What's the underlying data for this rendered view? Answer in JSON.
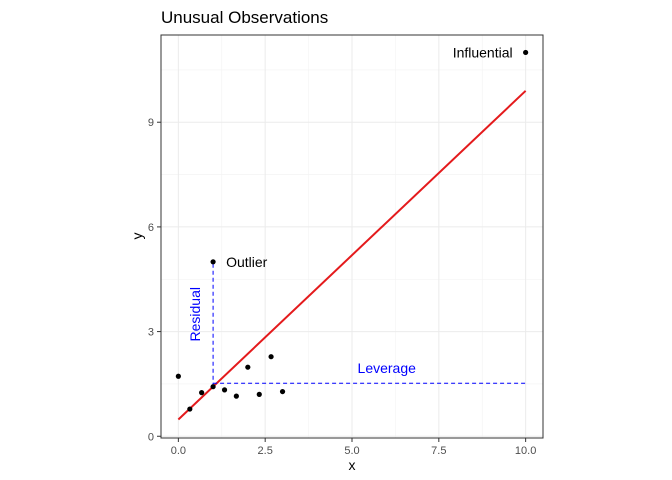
{
  "chart_data": {
    "type": "scatter",
    "title": "Unusual Observations",
    "xlabel": "x",
    "ylabel": "y",
    "xlim": [
      -0.5,
      10.5
    ],
    "ylim": [
      -0.05,
      11.5
    ],
    "x_ticks": [
      0,
      2.5,
      5,
      7.5,
      10
    ],
    "x_tick_labels": [
      "0.0",
      "2.5",
      "5.0",
      "7.5",
      "10.0"
    ],
    "y_ticks": [
      0,
      3,
      6,
      9
    ],
    "y_tick_labels": [
      "0",
      "3",
      "6",
      "9"
    ],
    "grid": true,
    "points": [
      {
        "x": 0.0,
        "y": 1.72
      },
      {
        "x": 0.33,
        "y": 0.78
      },
      {
        "x": 0.67,
        "y": 1.25
      },
      {
        "x": 1.0,
        "y": 1.42
      },
      {
        "x": 1.33,
        "y": 1.33
      },
      {
        "x": 1.67,
        "y": 1.15
      },
      {
        "x": 2.0,
        "y": 1.98
      },
      {
        "x": 2.33,
        "y": 1.2
      },
      {
        "x": 2.67,
        "y": 2.28
      },
      {
        "x": 3.0,
        "y": 1.28
      },
      {
        "x": 1.0,
        "y": 5.0
      },
      {
        "x": 10.0,
        "y": 11.0
      }
    ],
    "fit_line": {
      "x": [
        0,
        10
      ],
      "y": [
        0.48,
        9.9
      ],
      "color": "#e41a1c"
    },
    "annotations": {
      "outlier": {
        "label": "Outlier",
        "x": 1.0,
        "y": 5.0
      },
      "influential": {
        "label": "Influential",
        "x": 10.0,
        "y": 11.0
      },
      "residual": {
        "label": "Residual",
        "x": 1.0,
        "y_from": 1.42,
        "y_to": 5.0,
        "color": "#0000ff"
      },
      "leverage": {
        "label": "Leverage",
        "y": 1.52,
        "x_from": 1.0,
        "x_to": 10.0,
        "color": "#0000ff"
      }
    }
  }
}
